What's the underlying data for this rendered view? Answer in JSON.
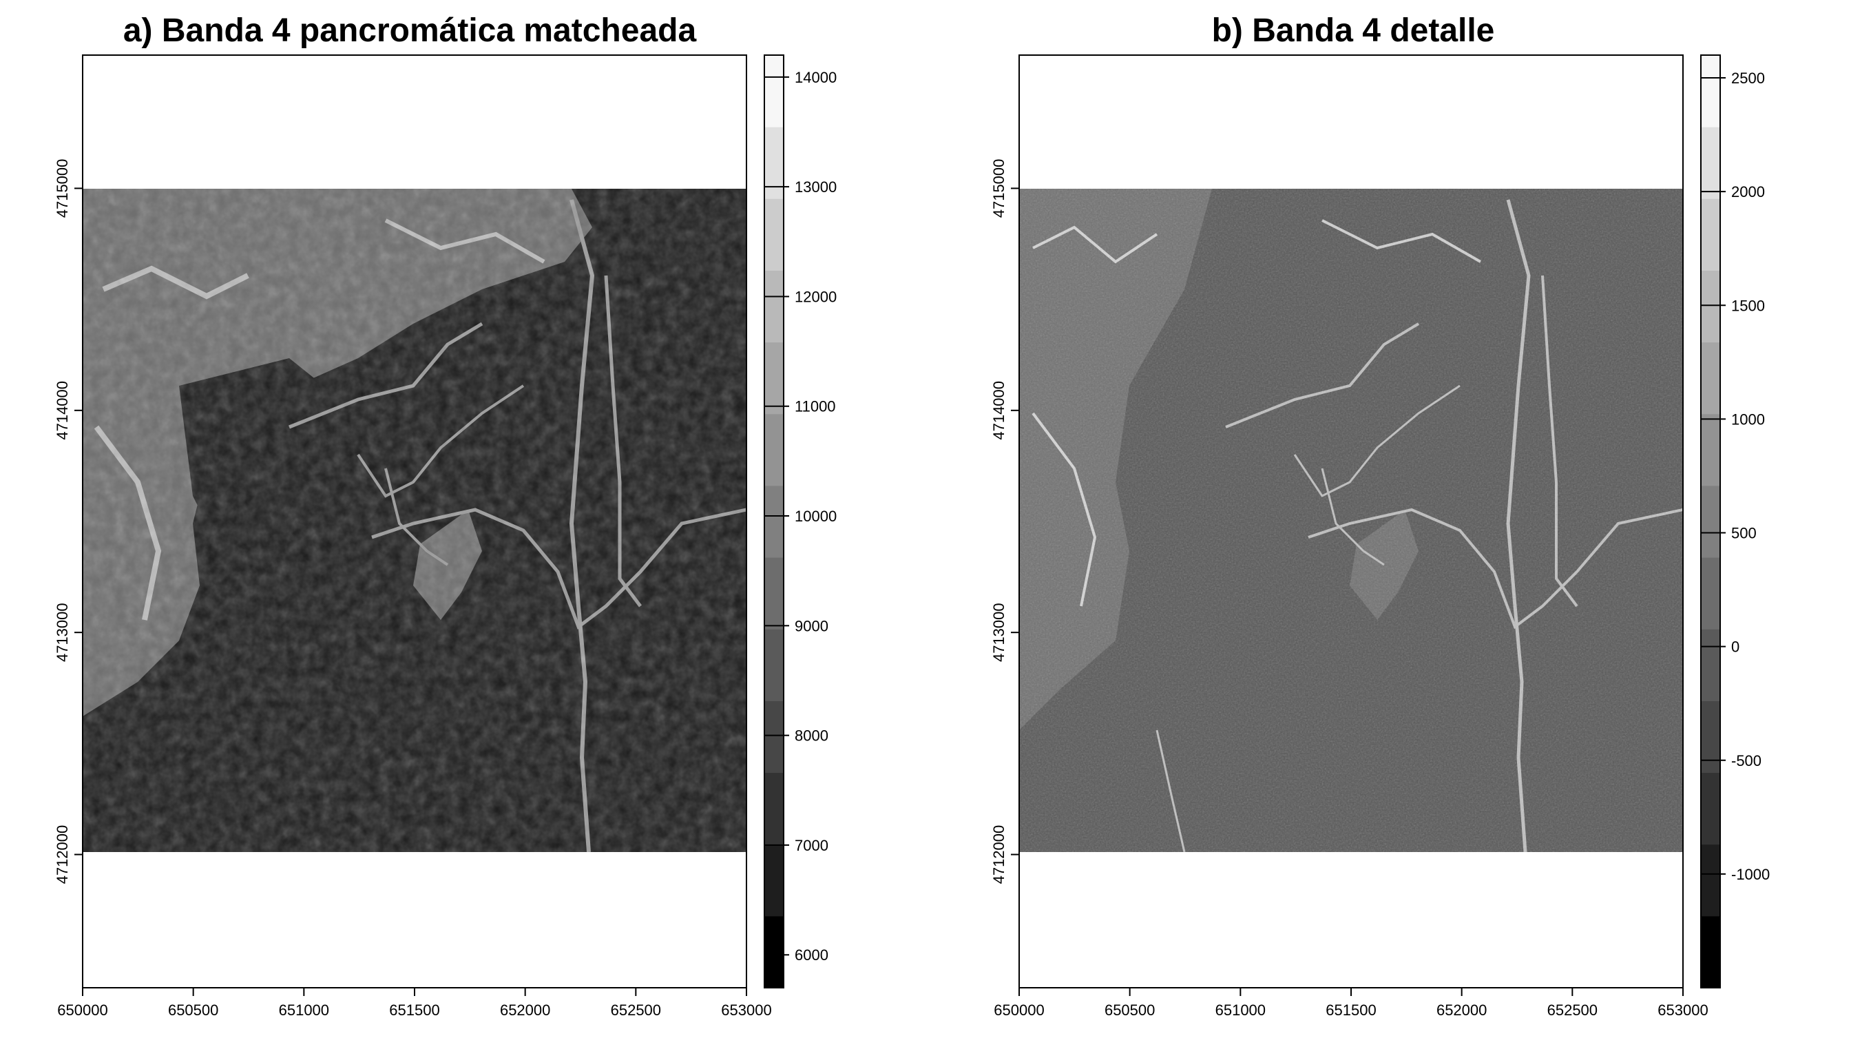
{
  "chart_data": [
    {
      "type": "heatmap",
      "panel": "a",
      "title": "a) Banda 4 pancromática matcheada",
      "xlabel": "",
      "ylabel": "",
      "xlim": [
        650000,
        653000
      ],
      "ylim": [
        4711400,
        4715600
      ],
      "raster_extent": {
        "x": [
          650000,
          653000
        ],
        "y": [
          4712000,
          4715000
        ]
      },
      "x_ticks": [
        650000,
        650500,
        651000,
        651500,
        652000,
        652500,
        653000
      ],
      "y_ticks": [
        4712000,
        4713000,
        4714000,
        4715000
      ],
      "colorbar": {
        "min": 5700,
        "max": 14200,
        "ticks": [
          6000,
          7000,
          8000,
          9000,
          10000,
          11000,
          12000,
          13000,
          14000
        ],
        "palette": [
          "#000000",
          "#1e1e1e",
          "#333333",
          "#474747",
          "#5a5a5a",
          "#6d6d6d",
          "#808080",
          "#939393",
          "#a6a6a6",
          "#b9b9b9",
          "#cccccc",
          "#e0e0e0",
          "#f7f7f7"
        ]
      },
      "typical_value": 7300,
      "scene_shading": {
        "background": "#1b1b1b",
        "bright_zone": "#8a8a8a",
        "features": "#9a9a9a",
        "highlights": "#d0d0d0"
      }
    },
    {
      "type": "heatmap",
      "panel": "b",
      "title": "b) Banda 4 detalle",
      "xlabel": "",
      "ylabel": "",
      "xlim": [
        650000,
        653000
      ],
      "ylim": [
        4711400,
        4715600
      ],
      "raster_extent": {
        "x": [
          650000,
          653000
        ],
        "y": [
          4712000,
          4715000
        ]
      },
      "x_ticks": [
        650000,
        650500,
        651000,
        651500,
        652000,
        652500,
        653000
      ],
      "y_ticks": [
        4712000,
        4713000,
        4714000,
        4715000
      ],
      "colorbar": {
        "min": -1500,
        "max": 2600,
        "ticks": [
          -1000,
          -500,
          0,
          500,
          1000,
          1500,
          2000,
          2500
        ],
        "palette": [
          "#000000",
          "#1e1e1e",
          "#333333",
          "#474747",
          "#5a5a5a",
          "#6d6d6d",
          "#808080",
          "#939393",
          "#a6a6a6",
          "#b9b9b9",
          "#cccccc",
          "#e0e0e0",
          "#f7f7f7"
        ]
      },
      "typical_value": 0,
      "scene_shading": {
        "background": "#585858",
        "bright_zone": "#7a7a7a",
        "features": "#c0c0c0",
        "highlights": "#f0f0f0"
      }
    }
  ]
}
